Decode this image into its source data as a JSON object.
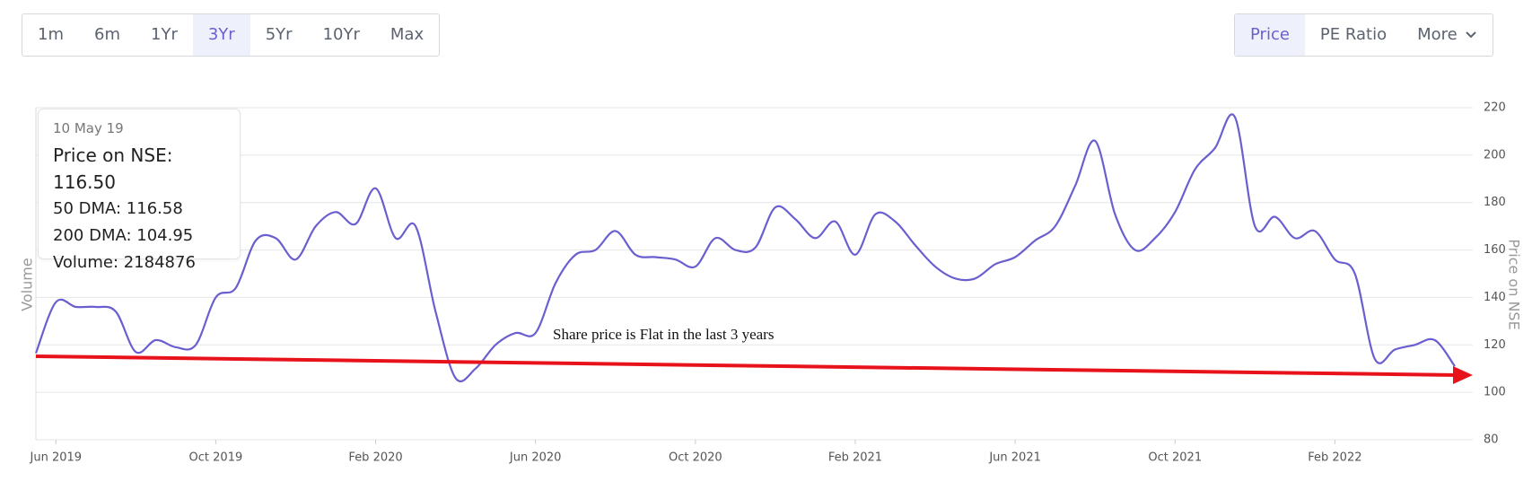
{
  "ui": {
    "periods": [
      "1m",
      "6m",
      "1Yr",
      "3Yr",
      "5Yr",
      "10Yr",
      "Max"
    ],
    "views": [
      "Price",
      "PE Ratio",
      "More"
    ]
  },
  "tooltip": {
    "date": "10 May 19",
    "lines": [
      "Price on NSE: 116.50",
      "50 DMA: 116.58",
      "200 DMA: 104.95",
      "Volume: 2184876"
    ]
  },
  "chart_data": {
    "type": "line",
    "y_label_left": "Volume",
    "annotation": "Share price is Flat in the last 3 years",
    "categories": [
      null,
      "Jun 2019",
      null,
      null,
      null,
      null,
      null,
      null,
      null,
      "Oct 2019",
      null,
      null,
      null,
      null,
      null,
      null,
      null,
      "Feb 2020",
      null,
      null,
      null,
      null,
      null,
      null,
      null,
      "Jun 2020",
      null,
      null,
      null,
      null,
      null,
      null,
      null,
      "Oct 2020",
      null,
      null,
      null,
      null,
      null,
      null,
      null,
      "Feb 2021",
      null,
      null,
      null,
      null,
      null,
      null,
      null,
      "Jun 2021",
      null,
      null,
      null,
      null,
      null,
      null,
      null,
      "Oct 2021",
      null,
      null,
      null,
      null,
      null,
      null,
      null,
      "Feb 2022",
      null,
      null,
      null,
      null,
      null,
      null
    ],
    "series": [
      {
        "name": "Price on NSE",
        "color": "#6a5fcf",
        "values": [
          116.5,
          138,
          136,
          136,
          134,
          117,
          122,
          119,
          120,
          140,
          144,
          164,
          165,
          156,
          170,
          176,
          171,
          186,
          165,
          170,
          134,
          106,
          110,
          120,
          125,
          125,
          146,
          158,
          160,
          168,
          158,
          157,
          156,
          153,
          165,
          160,
          161,
          178,
          173,
          165,
          172,
          158,
          175,
          172,
          162,
          153,
          148,
          148,
          154,
          157,
          164,
          170,
          187,
          206,
          175,
          160,
          165,
          176,
          194,
          203,
          216,
          170,
          174,
          165,
          168,
          156,
          150,
          114,
          118,
          120,
          122,
          111
        ]
      }
    ],
    "ylim": [
      80,
      220
    ],
    "yticks": [
      80,
      100,
      120,
      140,
      160,
      180,
      200,
      220
    ],
    "grid": true
  }
}
